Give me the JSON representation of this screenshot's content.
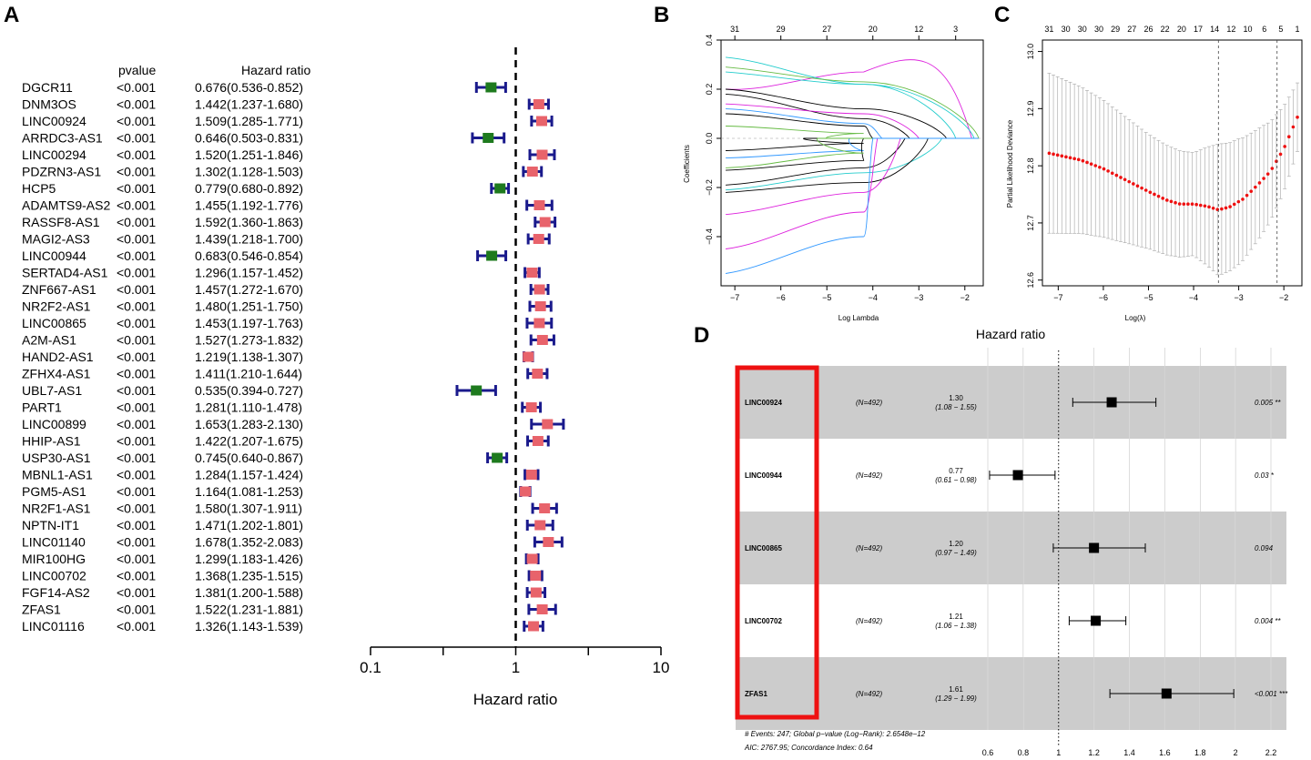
{
  "chart_data": [
    {
      "id": "A",
      "panel_label": "A",
      "type": "forest",
      "col_headers": {
        "pvalue": "pvalue",
        "hr": "Hazard ratio"
      },
      "xlabel": "Hazard ratio",
      "xscale": "log",
      "xlim": [
        0.1,
        10
      ],
      "xticks": [
        0.1,
        1,
        10
      ],
      "xtick_labels": [
        "0.1",
        "1",
        "10"
      ],
      "minor_ticks": [
        0.3162,
        3.162
      ],
      "reference_line": 1,
      "protective_color": "#1e7a1e",
      "risk_color": "#e8636b",
      "whisker_color": "#1a1a8c",
      "rows": [
        {
          "gene": "DGCR11",
          "pvalue": "<0.001",
          "hr_text": "0.676(0.536-0.852)",
          "hr": 0.676,
          "lo": 0.536,
          "hi": 0.852
        },
        {
          "gene": "DNM3OS",
          "pvalue": "<0.001",
          "hr_text": "1.442(1.237-1.680)",
          "hr": 1.442,
          "lo": 1.237,
          "hi": 1.68
        },
        {
          "gene": "LINC00924",
          "pvalue": "<0.001",
          "hr_text": "1.509(1.285-1.771)",
          "hr": 1.509,
          "lo": 1.285,
          "hi": 1.771
        },
        {
          "gene": "ARRDC3-AS1",
          "pvalue": "<0.001",
          "hr_text": "0.646(0.503-0.831)",
          "hr": 0.646,
          "lo": 0.503,
          "hi": 0.831
        },
        {
          "gene": "LINC00294",
          "pvalue": "<0.001",
          "hr_text": "1.520(1.251-1.846)",
          "hr": 1.52,
          "lo": 1.251,
          "hi": 1.846
        },
        {
          "gene": "PDZRN3-AS1",
          "pvalue": "<0.001",
          "hr_text": "1.302(1.128-1.503)",
          "hr": 1.302,
          "lo": 1.128,
          "hi": 1.503
        },
        {
          "gene": "HCP5",
          "pvalue": "<0.001",
          "hr_text": "0.779(0.680-0.892)",
          "hr": 0.779,
          "lo": 0.68,
          "hi": 0.892
        },
        {
          "gene": "ADAMTS9-AS2",
          "pvalue": "<0.001",
          "hr_text": "1.455(1.192-1.776)",
          "hr": 1.455,
          "lo": 1.192,
          "hi": 1.776
        },
        {
          "gene": "RASSF8-AS1",
          "pvalue": "<0.001",
          "hr_text": "1.592(1.360-1.863)",
          "hr": 1.592,
          "lo": 1.36,
          "hi": 1.863
        },
        {
          "gene": "MAGI2-AS3",
          "pvalue": "<0.001",
          "hr_text": "1.439(1.218-1.700)",
          "hr": 1.439,
          "lo": 1.218,
          "hi": 1.7
        },
        {
          "gene": "LINC00944",
          "pvalue": "<0.001",
          "hr_text": "0.683(0.546-0.854)",
          "hr": 0.683,
          "lo": 0.546,
          "hi": 0.854
        },
        {
          "gene": "SERTAD4-AS1",
          "pvalue": "<0.001",
          "hr_text": "1.296(1.157-1.452)",
          "hr": 1.296,
          "lo": 1.157,
          "hi": 1.452
        },
        {
          "gene": "ZNF667-AS1",
          "pvalue": "<0.001",
          "hr_text": "1.457(1.272-1.670)",
          "hr": 1.457,
          "lo": 1.272,
          "hi": 1.67
        },
        {
          "gene": "NR2F2-AS1",
          "pvalue": "<0.001",
          "hr_text": "1.480(1.251-1.750)",
          "hr": 1.48,
          "lo": 1.251,
          "hi": 1.75
        },
        {
          "gene": "LINC00865",
          "pvalue": "<0.001",
          "hr_text": "1.453(1.197-1.763)",
          "hr": 1.453,
          "lo": 1.197,
          "hi": 1.763
        },
        {
          "gene": "A2M-AS1",
          "pvalue": "<0.001",
          "hr_text": "1.527(1.273-1.832)",
          "hr": 1.527,
          "lo": 1.273,
          "hi": 1.832
        },
        {
          "gene": "HAND2-AS1",
          "pvalue": "<0.001",
          "hr_text": "1.219(1.138-1.307)",
          "hr": 1.219,
          "lo": 1.138,
          "hi": 1.307
        },
        {
          "gene": "ZFHX4-AS1",
          "pvalue": "<0.001",
          "hr_text": "1.411(1.210-1.644)",
          "hr": 1.411,
          "lo": 1.21,
          "hi": 1.644
        },
        {
          "gene": "UBL7-AS1",
          "pvalue": "<0.001",
          "hr_text": "0.535(0.394-0.727)",
          "hr": 0.535,
          "lo": 0.394,
          "hi": 0.727
        },
        {
          "gene": "PART1",
          "pvalue": "<0.001",
          "hr_text": "1.281(1.110-1.478)",
          "hr": 1.281,
          "lo": 1.11,
          "hi": 1.478
        },
        {
          "gene": "LINC00899",
          "pvalue": "<0.001",
          "hr_text": "1.653(1.283-2.130)",
          "hr": 1.653,
          "lo": 1.283,
          "hi": 2.13
        },
        {
          "gene": "HHIP-AS1",
          "pvalue": "<0.001",
          "hr_text": "1.422(1.207-1.675)",
          "hr": 1.422,
          "lo": 1.207,
          "hi": 1.675
        },
        {
          "gene": "USP30-AS1",
          "pvalue": "<0.001",
          "hr_text": "0.745(0.640-0.867)",
          "hr": 0.745,
          "lo": 0.64,
          "hi": 0.867
        },
        {
          "gene": "MBNL1-AS1",
          "pvalue": "<0.001",
          "hr_text": "1.284(1.157-1.424)",
          "hr": 1.284,
          "lo": 1.157,
          "hi": 1.424
        },
        {
          "gene": "PGM5-AS1",
          "pvalue": "<0.001",
          "hr_text": "1.164(1.081-1.253)",
          "hr": 1.164,
          "lo": 1.081,
          "hi": 1.253
        },
        {
          "gene": "NR2F1-AS1",
          "pvalue": "<0.001",
          "hr_text": "1.580(1.307-1.911)",
          "hr": 1.58,
          "lo": 1.307,
          "hi": 1.911
        },
        {
          "gene": "NPTN-IT1",
          "pvalue": "<0.001",
          "hr_text": "1.471(1.202-1.801)",
          "hr": 1.471,
          "lo": 1.202,
          "hi": 1.801
        },
        {
          "gene": "LINC01140",
          "pvalue": "<0.001",
          "hr_text": "1.678(1.352-2.083)",
          "hr": 1.678,
          "lo": 1.352,
          "hi": 2.083
        },
        {
          "gene": "MIR100HG",
          "pvalue": "<0.001",
          "hr_text": "1.299(1.183-1.426)",
          "hr": 1.299,
          "lo": 1.183,
          "hi": 1.426
        },
        {
          "gene": "LINC00702",
          "pvalue": "<0.001",
          "hr_text": "1.368(1.235-1.515)",
          "hr": 1.368,
          "lo": 1.235,
          "hi": 1.515
        },
        {
          "gene": "FGF14-AS2",
          "pvalue": "<0.001",
          "hr_text": "1.381(1.200-1.588)",
          "hr": 1.381,
          "lo": 1.2,
          "hi": 1.588
        },
        {
          "gene": "ZFAS1",
          "pvalue": "<0.001",
          "hr_text": "1.522(1.231-1.881)",
          "hr": 1.522,
          "lo": 1.231,
          "hi": 1.881
        },
        {
          "gene": "LINC01116",
          "pvalue": "<0.001",
          "hr_text": "1.326(1.143-1.539)",
          "hr": 1.326,
          "lo": 1.143,
          "hi": 1.539
        }
      ]
    },
    {
      "id": "B",
      "panel_label": "B",
      "type": "line",
      "title": "",
      "xlabel": "Log Lambda",
      "ylabel": "Coefficients",
      "xlim": [
        -7.3,
        -1.6
      ],
      "ylim": [
        -0.6,
        0.4
      ],
      "xticks": [
        -7,
        -6,
        -5,
        -4,
        -3,
        -2
      ],
      "yticks": [
        -0.4,
        -0.2,
        0.0,
        0.2,
        0.4
      ],
      "ytick_labels": [
        "−0.4",
        "−0.2",
        "0.0",
        "0.2",
        "0.4"
      ],
      "xtick_labels": [
        "−7",
        "−6",
        "−5",
        "−4",
        "−3",
        "−2"
      ],
      "top_x": [
        -7,
        -6,
        -5,
        -4,
        -3,
        -2.2
      ],
      "top_labels": [
        "31",
        "29",
        "27",
        "20",
        "12",
        "3"
      ],
      "series": [
        {
          "color": "#dd22dd",
          "start": 0.2,
          "mid": 0.27,
          "end": 0.0,
          "zero_at": -1.85,
          "peak": 0.36
        },
        {
          "color": "#22cccc",
          "start": 0.33,
          "mid": 0.22,
          "end": 0.0,
          "zero_at": -1.8
        },
        {
          "color": "#66bb44",
          "start": 0.29,
          "mid": 0.23,
          "end": 0.0,
          "zero_at": -1.7
        },
        {
          "color": "#22cccc",
          "start": 0.27,
          "mid": 0.22,
          "end": 0.0,
          "zero_at": -2.2
        },
        {
          "color": "#000000",
          "start": 0.2,
          "mid": 0.12,
          "end": 0.0,
          "zero_at": -2.4
        },
        {
          "color": "#000000",
          "start": 0.18,
          "mid": 0.08,
          "end": 0.0,
          "zero_at": -3.2
        },
        {
          "color": "#dd22dd",
          "start": 0.14,
          "mid": 0.1,
          "end": 0.0,
          "zero_at": -3.0
        },
        {
          "color": "#3399ff",
          "start": 0.12,
          "mid": 0.06,
          "end": 0.0,
          "zero_at": -3.8
        },
        {
          "color": "#000000",
          "start": 0.1,
          "mid": 0.05,
          "end": 0.0,
          "zero_at": -4.0
        },
        {
          "color": "#66bb44",
          "start": 0.05,
          "mid": 0.02,
          "end": 0.0,
          "zero_at": -5.0
        },
        {
          "color": "#000000",
          "start": -0.05,
          "mid": -0.02,
          "end": 0.0,
          "zero_at": -5.5
        },
        {
          "color": "#3399ff",
          "start": -0.08,
          "mid": -0.05,
          "end": 0.0,
          "zero_at": -4.5
        },
        {
          "color": "#000000",
          "start": -0.13,
          "mid": -0.09,
          "end": 0.0,
          "zero_at": -4.2
        },
        {
          "color": "#66bb44",
          "start": -0.12,
          "mid": -0.06,
          "end": 0.0,
          "zero_at": -5.2
        },
        {
          "color": "#000000",
          "start": -0.19,
          "mid": -0.12,
          "end": 0.0,
          "zero_at": -3.3
        },
        {
          "color": "#22cccc",
          "start": -0.21,
          "mid": -0.14,
          "end": 0.0,
          "zero_at": -2.5
        },
        {
          "color": "#000000",
          "start": -0.22,
          "mid": -0.18,
          "end": 0.0,
          "zero_at": -2.8
        },
        {
          "color": "#dd22dd",
          "start": -0.31,
          "mid": -0.22,
          "end": 0.0,
          "zero_at": -3.4
        },
        {
          "color": "#dd22dd",
          "start": -0.45,
          "mid": -0.3,
          "end": 0.0,
          "zero_at": -3.9
        },
        {
          "color": "#3399ff",
          "start": -0.55,
          "mid": -0.4,
          "end": 0.0,
          "zero_at": -4.0
        }
      ]
    },
    {
      "id": "C",
      "panel_label": "C",
      "type": "scatter",
      "xlabel": "Log(λ)",
      "ylabel": "Partial Likelihood Deviance",
      "xlim": [
        -7.35,
        -1.6
      ],
      "ylim": [
        12.59,
        13.02
      ],
      "xticks": [
        -7,
        -6,
        -5,
        -4,
        -3,
        -2
      ],
      "xtick_labels": [
        "−7",
        "−6",
        "−5",
        "−4",
        "−3",
        "−2"
      ],
      "yticks": [
        12.6,
        12.7,
        12.8,
        12.9,
        13.0
      ],
      "ytick_labels": [
        "12.6",
        "12.7",
        "12.8",
        "12.9",
        "13.0"
      ],
      "top_labels": [
        "31",
        "30",
        "30",
        "30",
        "29",
        "27",
        "26",
        "22",
        "20",
        "17",
        "14",
        "12",
        "10",
        "6",
        "5",
        "1"
      ],
      "lambda_min": -3.45,
      "lambda_1se": -2.15,
      "point_color": "#ee1111",
      "curve": {
        "x0": -7.2,
        "x1": -1.7,
        "n": 60,
        "points": [
          [
            -7.2,
            12.822
          ],
          [
            -6.5,
            12.81
          ],
          [
            -6.0,
            12.795
          ],
          [
            -5.5,
            12.775
          ],
          [
            -5.0,
            12.755
          ],
          [
            -4.6,
            12.74
          ],
          [
            -4.3,
            12.733
          ],
          [
            -4.0,
            12.733
          ],
          [
            -3.7,
            12.729
          ],
          [
            -3.45,
            12.723
          ],
          [
            -3.2,
            12.728
          ],
          [
            -2.9,
            12.742
          ],
          [
            -2.6,
            12.765
          ],
          [
            -2.3,
            12.79
          ],
          [
            -2.0,
            12.83
          ],
          [
            -1.7,
            12.885
          ]
        ]
      },
      "error": {
        "points": [
          [
            -7.2,
            0.14
          ],
          [
            -6.0,
            0.12
          ],
          [
            -5.0,
            0.1
          ],
          [
            -4.0,
            0.09
          ],
          [
            -3.45,
            0.115
          ],
          [
            -3.0,
            0.11
          ],
          [
            -2.5,
            0.095
          ],
          [
            -2.0,
            0.075
          ],
          [
            -1.7,
            0.06
          ]
        ]
      }
    },
    {
      "id": "D",
      "panel_label": "D",
      "type": "forest",
      "title": "Hazard ratio",
      "xscale": "linear",
      "xlim": [
        0.55,
        2.35
      ],
      "xticks": [
        0.6,
        0.8,
        1,
        1.2,
        1.4,
        1.6,
        1.8,
        2,
        2.2
      ],
      "xtick_labels": [
        "0.6",
        "0.8",
        "1",
        "1.2",
        "1.4",
        "1.6",
        "1.8",
        "2",
        "2.2"
      ],
      "reference_line": 1,
      "highlight_color": "#ee1111",
      "row_shade": "#cccccc",
      "rows": [
        {
          "gene": "LINC00924",
          "n": "(N=492)",
          "hr_text": "1.30",
          "ci_text": "(1.08 − 1.55)",
          "hr": 1.3,
          "lo": 1.08,
          "hi": 1.55,
          "p": "0.005 **"
        },
        {
          "gene": "LINC00944",
          "n": "(N=492)",
          "hr_text": "0.77",
          "ci_text": "(0.61 − 0.98)",
          "hr": 0.77,
          "lo": 0.61,
          "hi": 0.98,
          "p": "0.03 *"
        },
        {
          "gene": "LINC00865",
          "n": "(N=492)",
          "hr_text": "1.20",
          "ci_text": "(0.97 − 1.49)",
          "hr": 1.2,
          "lo": 0.97,
          "hi": 1.49,
          "p": "0.094"
        },
        {
          "gene": "LINC00702",
          "n": "(N=492)",
          "hr_text": "1.21",
          "ci_text": "(1.06 − 1.38)",
          "hr": 1.21,
          "lo": 1.06,
          "hi": 1.38,
          "p": "0.004 **"
        },
        {
          "gene": "ZFAS1",
          "n": "(N=492)",
          "hr_text": "1.61",
          "ci_text": "(1.29 − 1.99)",
          "hr": 1.61,
          "lo": 1.29,
          "hi": 1.99,
          "p": "<0.001 ***"
        }
      ],
      "footer_line1": "# Events: 247; Global p−value (Log−Rank): 2.6548e−12",
      "footer_line2": "AIC: 2767.95; Concordance Index: 0.64"
    }
  ]
}
